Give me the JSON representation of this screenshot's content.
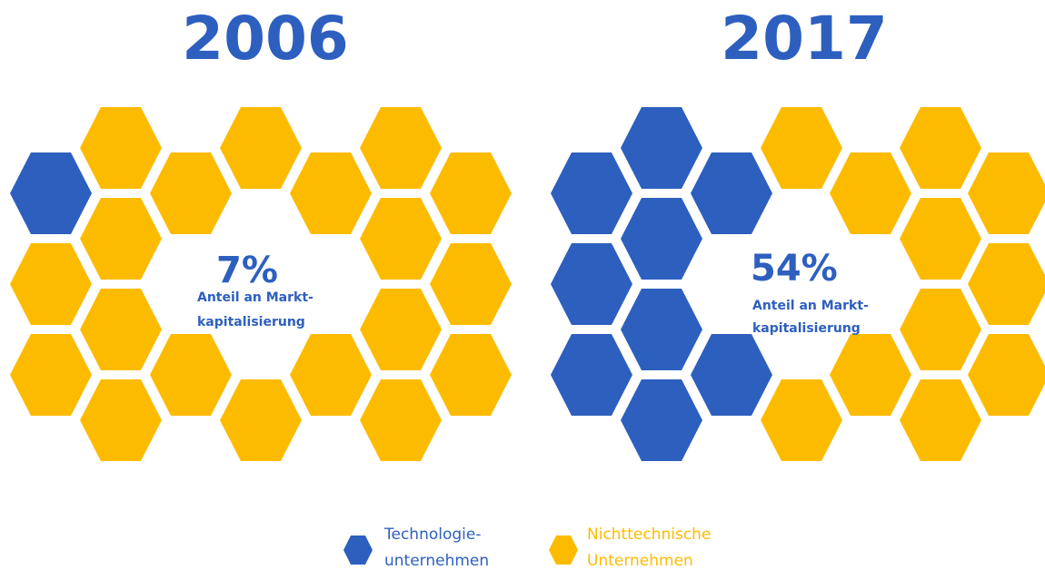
{
  "panels": [
    {
      "year": "2006",
      "share": "7%",
      "caption_line1": "Anteil an Markt-",
      "caption_line2": "kapitalisierung"
    },
    {
      "year": "2017",
      "share": "54%",
      "caption_line1": "Anteil an Markt-",
      "caption_line2": "kapitalisierung"
    }
  ],
  "legend": [
    {
      "label_line1": "Technologie-",
      "label_line2": "unternehmen"
    },
    {
      "label_line1": "Nichttechnische",
      "label_line2": "Unternehmen"
    }
  ]
}
